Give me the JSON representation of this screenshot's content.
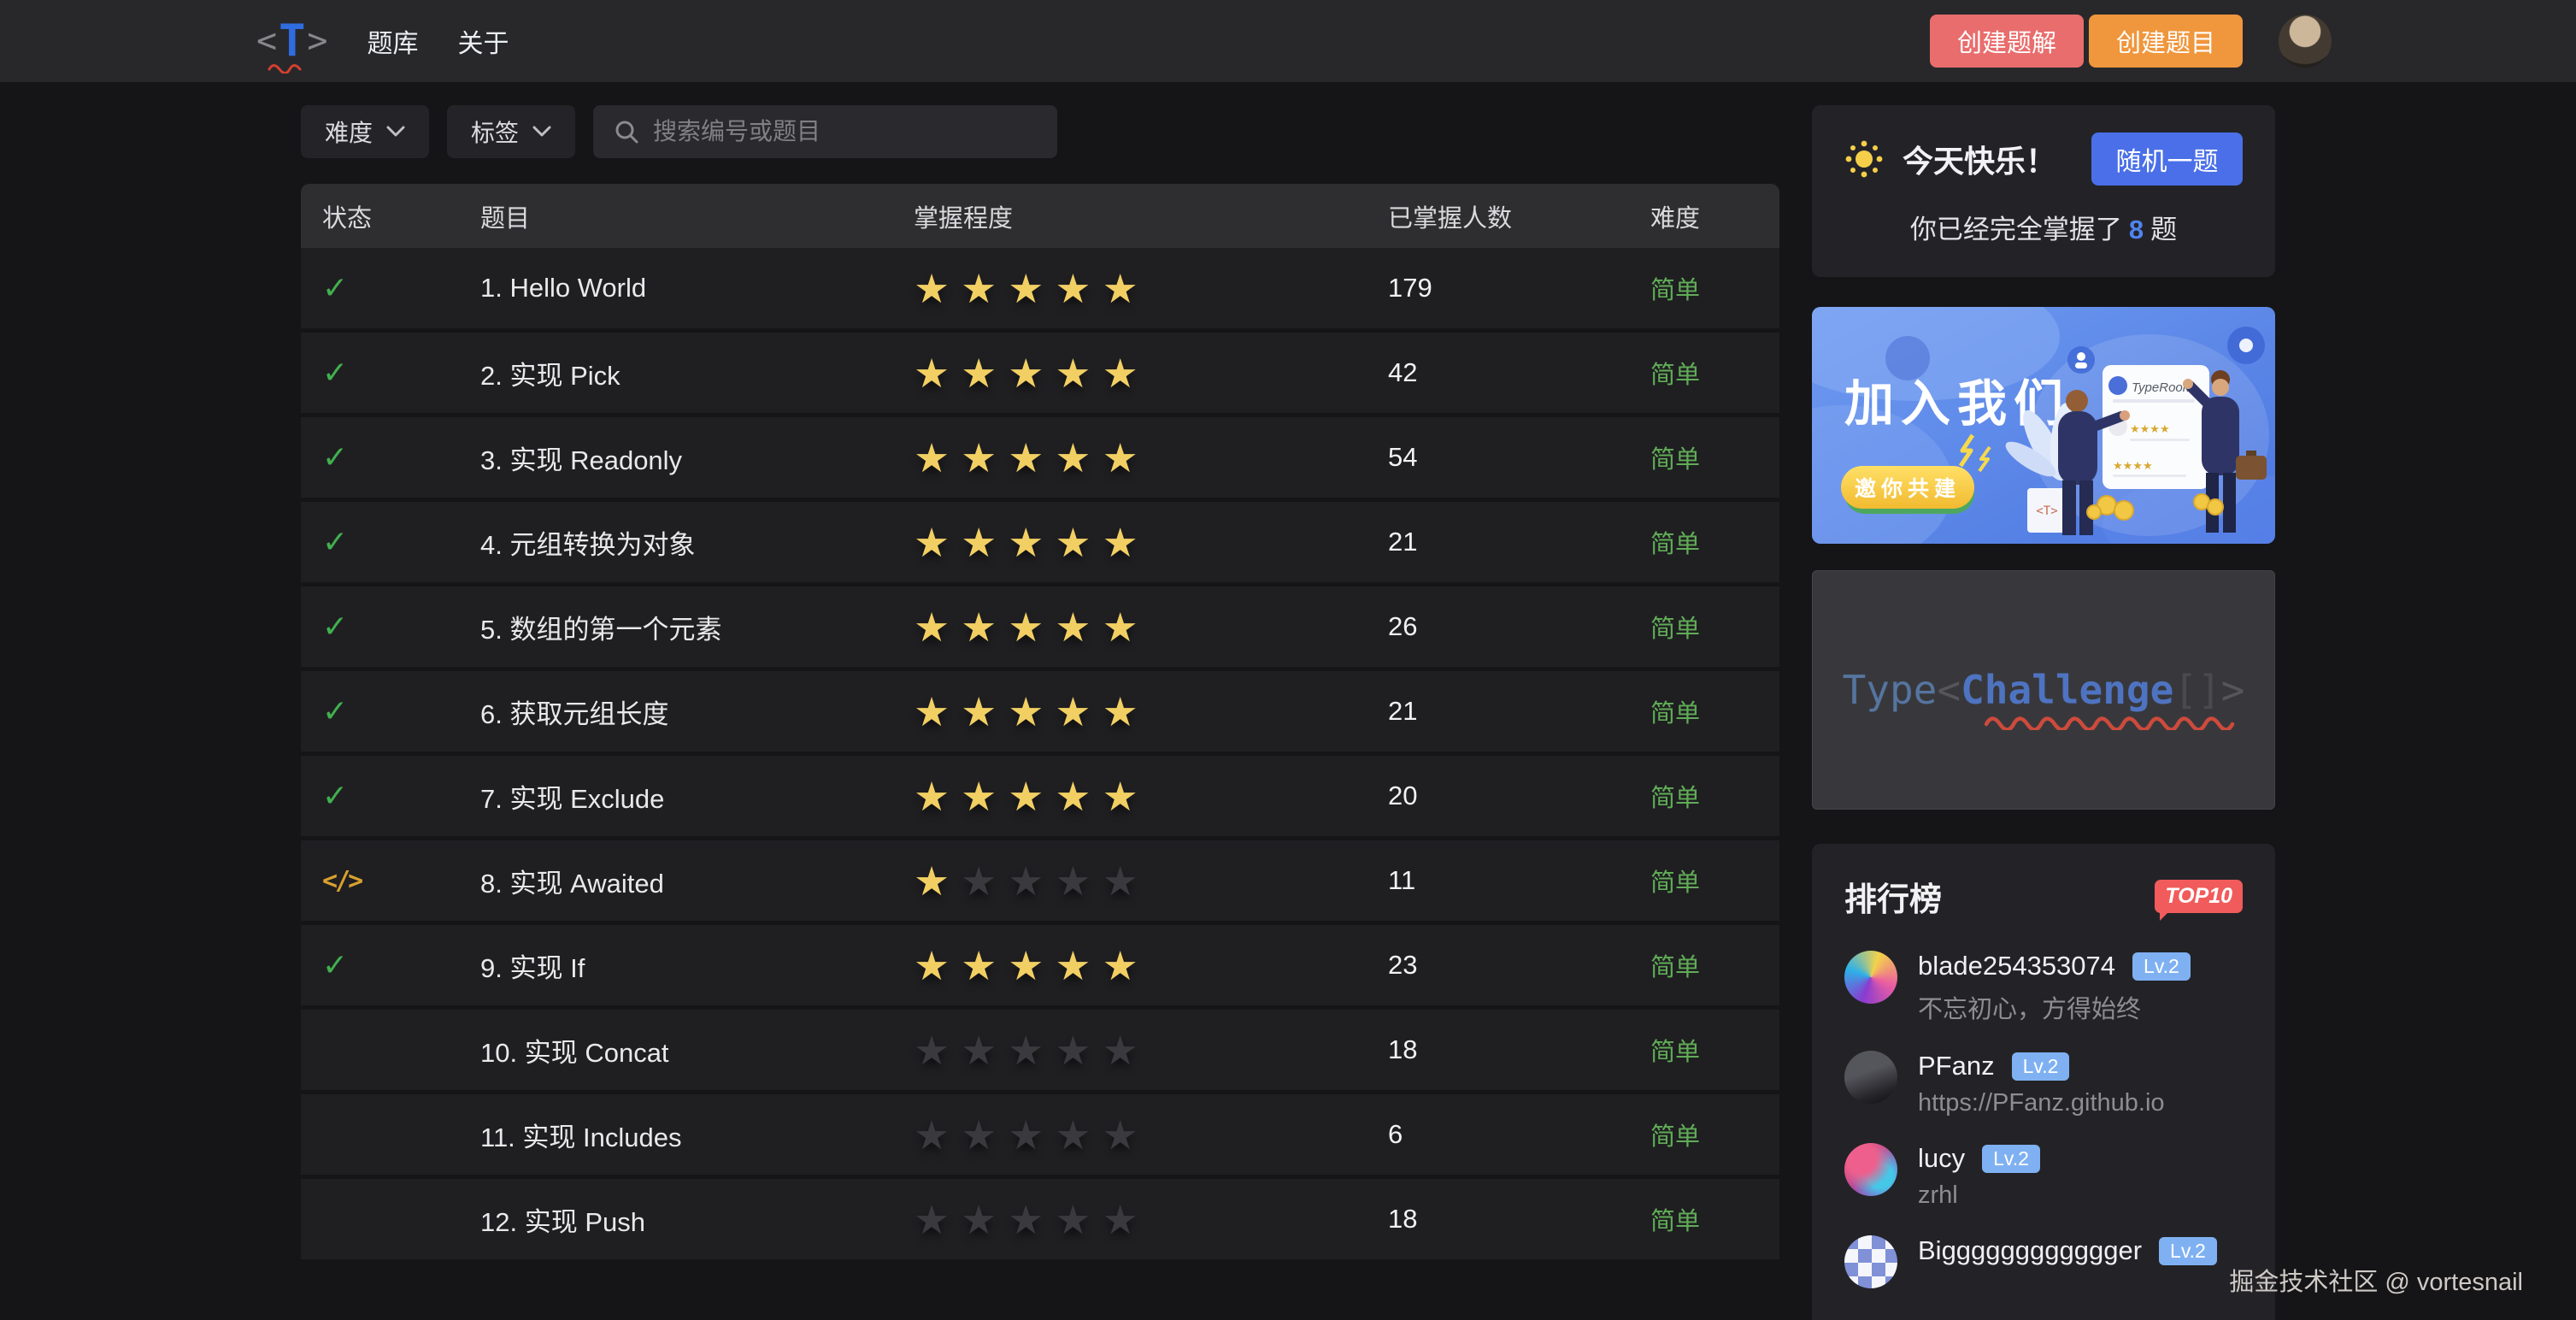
{
  "nav": {
    "logo": {
      "left": "<",
      "t": "T",
      "right": ">"
    },
    "links": [
      {
        "label": "题库"
      },
      {
        "label": "关于"
      }
    ],
    "create_solution_label": "创建题解",
    "create_question_label": "创建题目"
  },
  "filters": {
    "difficulty_label": "难度",
    "tags_label": "标签",
    "search_placeholder": "搜索编号或题目"
  },
  "table": {
    "columns": [
      "状态",
      "题目",
      "掌握程度",
      "已掌握人数",
      "难度"
    ],
    "rows": [
      {
        "status": "done",
        "title": "1. Hello World",
        "stars": 5,
        "mastered": 179,
        "difficulty": "简单"
      },
      {
        "status": "done",
        "title": "2. 实现 Pick",
        "stars": 5,
        "mastered": 42,
        "difficulty": "简单"
      },
      {
        "status": "done",
        "title": "3. 实现 Readonly",
        "stars": 5,
        "mastered": 54,
        "difficulty": "简单"
      },
      {
        "status": "done",
        "title": "4. 元组转换为对象",
        "stars": 5,
        "mastered": 21,
        "difficulty": "简单"
      },
      {
        "status": "done",
        "title": "5. 数组的第一个元素",
        "stars": 5,
        "mastered": 26,
        "difficulty": "简单"
      },
      {
        "status": "done",
        "title": "6. 获取元组长度",
        "stars": 5,
        "mastered": 21,
        "difficulty": "简单"
      },
      {
        "status": "done",
        "title": "7. 实现 Exclude",
        "stars": 5,
        "mastered": 20,
        "difficulty": "简单"
      },
      {
        "status": "progress",
        "title": "8. 实现 Awaited",
        "stars": 1,
        "mastered": 11,
        "difficulty": "简单"
      },
      {
        "status": "done",
        "title": "9. 实现 If",
        "stars": 5,
        "mastered": 23,
        "difficulty": "简单"
      },
      {
        "status": "none",
        "title": "10. 实现 Concat",
        "stars": 0,
        "mastered": 18,
        "difficulty": "简单"
      },
      {
        "status": "none",
        "title": "11. 实现 Includes",
        "stars": 0,
        "mastered": 6,
        "difficulty": "简单"
      },
      {
        "status": "none",
        "title": "12. 实现 Push",
        "stars": 0,
        "mastered": 18,
        "difficulty": "简单"
      }
    ]
  },
  "sidebar": {
    "happy": {
      "title": "今天快乐！",
      "random_button": "随机一题",
      "line_prefix": "你已经完全掌握了",
      "mastered_count": "8",
      "line_suffix": "题"
    },
    "banner": {
      "title": "加入我们",
      "pill": "邀你共建",
      "card_title": "TypeRoom",
      "bag_logo": "<T>"
    },
    "promo": {
      "part1": "Type",
      "lt": "<",
      "part2": "Challenge",
      "brackets": "[]",
      "gt": ">"
    },
    "leaderboard": {
      "title": "排行榜",
      "badge": "TOP10",
      "users": [
        {
          "name": "blade254353074",
          "level": "Lv.2",
          "desc": "不忘初心，方得始终"
        },
        {
          "name": "PFanz",
          "level": "Lv.2",
          "desc": "https://PFanz.github.io"
        },
        {
          "name": "lucy",
          "level": "Lv.2",
          "desc": "zrhl"
        },
        {
          "name": "Bigggggggggggger",
          "level": "Lv.2",
          "desc": ""
        }
      ]
    }
  },
  "footer": {
    "credit": "掘金技术社区 @ vortesnail"
  },
  "colors": {
    "accent_blue": "#4a6fe8",
    "star_yellow": "#f2cf63",
    "easy_green": "#61ac57",
    "solution_red": "#e96d6d",
    "question_orange": "#f0963c",
    "top10_red": "#f15b5b",
    "level_blue": "#7fb1f2"
  }
}
